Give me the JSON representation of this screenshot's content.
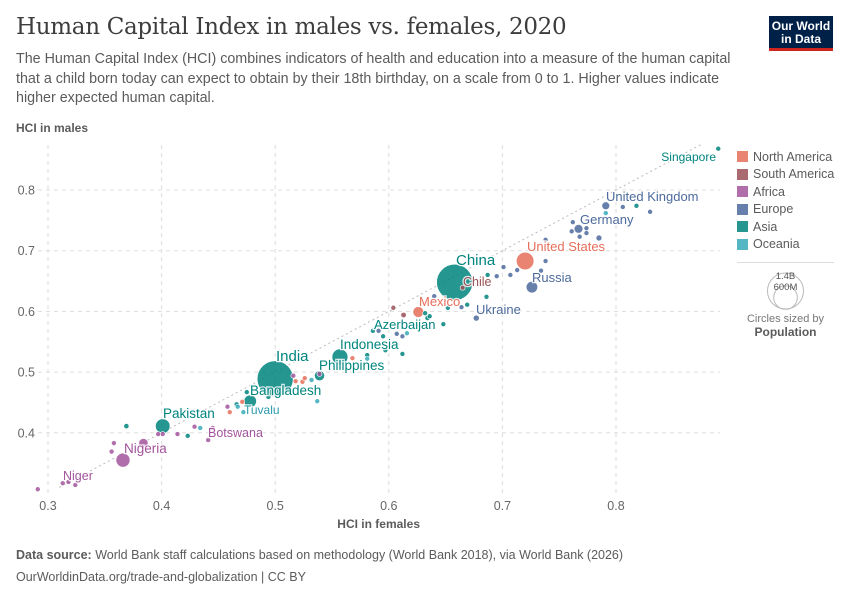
{
  "header": {
    "title": "Human Capital Index in males vs. females, 2020",
    "subtitle": "The Human Capital Index (HCI) combines indicators of health and education into a measure of the human capital that a child born today can expect to obtain by their 18th birthday, on a scale from 0 to 1. Higher values indicate higher expected human capital.",
    "logo_line1": "Our World",
    "logo_line2": "in Data"
  },
  "footer": {
    "source_label": "Data source:",
    "source_text": "World Bank staff calculations based on methodology (World Bank 2018), via World Bank (2026)",
    "url_text": "OurWorldinData.org/trade-and-globalization | CC BY"
  },
  "legend": {
    "items": [
      {
        "label": "North America",
        "color": "#E56E5A"
      },
      {
        "label": "South America",
        "color": "#9A5157"
      },
      {
        "label": "Africa",
        "color": "#A2559C"
      },
      {
        "label": "Europe",
        "color": "#4C6A9C"
      },
      {
        "label": "Asia",
        "color": "#00847E"
      },
      {
        "label": "Oceania",
        "color": "#38AABA"
      }
    ],
    "size_large": "1.4B",
    "size_small": "600M",
    "size_caption": "Circles sized by",
    "size_variable": "Population"
  },
  "chart_data": {
    "type": "scatter",
    "title": "Human Capital Index in males vs. females, 2020",
    "xlabel": "HCI in females",
    "ylabel": "HCI in males",
    "xlim": [
      0.29,
      0.9
    ],
    "ylim": [
      0.305,
      0.88
    ],
    "xticks": [
      "0.3",
      "0.4",
      "0.5",
      "0.6",
      "0.7",
      "0.8"
    ],
    "yticks": [
      "0.4",
      "0.5",
      "0.6",
      "0.7",
      "0.8"
    ],
    "grid": true,
    "reference_line": "y = x",
    "size_variable": "Population",
    "legend_position": "right",
    "points": [
      {
        "x": 0.291,
        "y": 0.307,
        "pop": 26,
        "region": "Africa",
        "label": "Niger"
      },
      {
        "x": 0.313,
        "y": 0.317,
        "pop": 17,
        "region": "Africa"
      },
      {
        "x": 0.318,
        "y": 0.319,
        "pop": 5,
        "region": "Africa"
      },
      {
        "x": 0.324,
        "y": 0.314,
        "pop": 8,
        "region": "Africa"
      },
      {
        "x": 0.356,
        "y": 0.369,
        "pop": 15,
        "region": "Africa"
      },
      {
        "x": 0.358,
        "y": 0.383,
        "pop": 5,
        "region": "Africa"
      },
      {
        "x": 0.366,
        "y": 0.355,
        "pop": 213,
        "region": "Africa",
        "label": "Nigeria"
      },
      {
        "x": 0.369,
        "y": 0.411,
        "pop": 30,
        "region": "Asia"
      },
      {
        "x": 0.384,
        "y": 0.383,
        "pop": 95,
        "region": "Africa"
      },
      {
        "x": 0.397,
        "y": 0.398,
        "pop": 10,
        "region": "Africa"
      },
      {
        "x": 0.401,
        "y": 0.398,
        "pop": 8,
        "region": "Africa"
      },
      {
        "x": 0.401,
        "y": 0.411,
        "pop": 230,
        "region": "Asia",
        "label": "Pakistan"
      },
      {
        "x": 0.414,
        "y": 0.398,
        "pop": 5,
        "region": "Africa"
      },
      {
        "x": 0.423,
        "y": 0.395,
        "pop": 12,
        "region": "Asia"
      },
      {
        "x": 0.429,
        "y": 0.41,
        "pop": 5,
        "region": "Africa"
      },
      {
        "x": 0.434,
        "y": 0.408,
        "pop": 1,
        "region": "Oceania"
      },
      {
        "x": 0.441,
        "y": 0.388,
        "pop": 3,
        "region": "Africa"
      },
      {
        "x": 0.445,
        "y": 0.408,
        "pop": 2.6,
        "region": "Africa",
        "label": "Botswana"
      },
      {
        "x": 0.458,
        "y": 0.443,
        "pop": 6,
        "region": "Africa"
      },
      {
        "x": 0.46,
        "y": 0.434,
        "pop": 11,
        "region": "North America"
      },
      {
        "x": 0.466,
        "y": 0.447,
        "pop": 4,
        "region": "Asia"
      },
      {
        "x": 0.467,
        "y": 0.443,
        "pop": 0.3,
        "region": "Oceania"
      },
      {
        "x": 0.471,
        "y": 0.451,
        "pop": 1,
        "region": "North America"
      },
      {
        "x": 0.472,
        "y": 0.434,
        "pop": 0.01,
        "region": "Oceania",
        "label": "Tuvalu"
      },
      {
        "x": 0.475,
        "y": 0.467,
        "pop": 8,
        "region": "Asia"
      },
      {
        "x": 0.478,
        "y": 0.452,
        "pop": 170,
        "region": "Asia",
        "label": "Bangladesh"
      },
      {
        "x": 0.494,
        "y": 0.459,
        "pop": 7,
        "region": "Asia"
      },
      {
        "x": 0.5,
        "y": 0.489,
        "pop": 1400,
        "region": "Asia",
        "label": "India"
      },
      {
        "x": 0.516,
        "y": 0.494,
        "pop": 15,
        "region": "Africa"
      },
      {
        "x": 0.518,
        "y": 0.485,
        "pop": 10,
        "region": "North America"
      },
      {
        "x": 0.524,
        "y": 0.484,
        "pop": 6,
        "region": "North America"
      },
      {
        "x": 0.526,
        "y": 0.49,
        "pop": 3,
        "region": "North America"
      },
      {
        "x": 0.532,
        "y": 0.487,
        "pop": 1,
        "region": "Oceania"
      },
      {
        "x": 0.537,
        "y": 0.452,
        "pop": 0.5,
        "region": "Oceania"
      },
      {
        "x": 0.539,
        "y": 0.497,
        "pop": 4,
        "region": "Africa"
      },
      {
        "x": 0.539,
        "y": 0.494,
        "pop": 112,
        "region": "Asia",
        "label": "Philippines"
      },
      {
        "x": 0.557,
        "y": 0.525,
        "pop": 273,
        "region": "Asia",
        "label": "Indonesia"
      },
      {
        "x": 0.568,
        "y": 0.523,
        "pop": 4,
        "region": "North America"
      },
      {
        "x": 0.581,
        "y": 0.528,
        "pop": 3,
        "region": "Asia"
      },
      {
        "x": 0.581,
        "y": 0.522,
        "pop": 1,
        "region": "Oceania"
      },
      {
        "x": 0.586,
        "y": 0.568,
        "pop": 5,
        "region": "Asia"
      },
      {
        "x": 0.591,
        "y": 0.568,
        "pop": 3,
        "region": "Europe"
      },
      {
        "x": 0.595,
        "y": 0.559,
        "pop": 10,
        "region": "Asia"
      },
      {
        "x": 0.597,
        "y": 0.536,
        "pop": 2,
        "region": "Asia"
      },
      {
        "x": 0.604,
        "y": 0.606,
        "pop": 7,
        "region": "South America"
      },
      {
        "x": 0.607,
        "y": 0.563,
        "pop": 3,
        "region": "Europe"
      },
      {
        "x": 0.612,
        "y": 0.559,
        "pop": 4,
        "region": "Europe"
      },
      {
        "x": 0.612,
        "y": 0.53,
        "pop": 7,
        "region": "Asia"
      },
      {
        "x": 0.613,
        "y": 0.594,
        "pop": 33,
        "region": "South America"
      },
      {
        "x": 0.616,
        "y": 0.564,
        "pop": 1,
        "region": "Oceania"
      },
      {
        "x": 0.626,
        "y": 0.599,
        "pop": 128,
        "region": "North America",
        "label": "Mexico"
      },
      {
        "x": 0.632,
        "y": 0.597,
        "pop": 10,
        "region": "Asia"
      },
      {
        "x": 0.634,
        "y": 0.589,
        "pop": 10,
        "region": "Asia",
        "label": "Azerbaijan"
      },
      {
        "x": 0.636,
        "y": 0.592,
        "pop": 5,
        "region": "Asia"
      },
      {
        "x": 0.648,
        "y": 0.579,
        "pop": 4,
        "region": "Asia"
      },
      {
        "x": 0.64,
        "y": 0.625,
        "pop": 3,
        "region": "Europe"
      },
      {
        "x": 0.652,
        "y": 0.606,
        "pop": 20,
        "region": "Asia"
      },
      {
        "x": 0.664,
        "y": 0.607,
        "pop": 2,
        "region": "Europe"
      },
      {
        "x": 0.669,
        "y": 0.611,
        "pop": 2,
        "region": "Asia"
      },
      {
        "x": 0.658,
        "y": 0.648,
        "pop": 1410,
        "region": "Asia",
        "label": "China"
      },
      {
        "x": 0.665,
        "y": 0.639,
        "pop": 19,
        "region": "South America",
        "label": "Chile"
      },
      {
        "x": 0.677,
        "y": 0.589,
        "pop": 40,
        "region": "Europe",
        "label": "Ukraine"
      },
      {
        "x": 0.686,
        "y": 0.624,
        "pop": 3,
        "region": "Asia"
      },
      {
        "x": 0.687,
        "y": 0.66,
        "pop": 5,
        "region": "Asia"
      },
      {
        "x": 0.695,
        "y": 0.658,
        "pop": 6,
        "region": "Europe"
      },
      {
        "x": 0.701,
        "y": 0.673,
        "pop": 4,
        "region": "Europe"
      },
      {
        "x": 0.707,
        "y": 0.66,
        "pop": 2,
        "region": "Europe"
      },
      {
        "x": 0.713,
        "y": 0.668,
        "pop": 5,
        "region": "Europe"
      },
      {
        "x": 0.72,
        "y": 0.683,
        "pop": 335,
        "region": "North America",
        "label": "United States"
      },
      {
        "x": 0.726,
        "y": 0.64,
        "pop": 144,
        "region": "Europe",
        "label": "Russia"
      },
      {
        "x": 0.734,
        "y": 0.667,
        "pop": 3,
        "region": "Europe"
      },
      {
        "x": 0.738,
        "y": 0.683,
        "pop": 10,
        "region": "Europe"
      },
      {
        "x": 0.738,
        "y": 0.718,
        "pop": 10,
        "region": "Europe"
      },
      {
        "x": 0.761,
        "y": 0.732,
        "pop": 5,
        "region": "Europe"
      },
      {
        "x": 0.762,
        "y": 0.747,
        "pop": 5,
        "region": "Europe"
      },
      {
        "x": 0.767,
        "y": 0.736,
        "pop": 83,
        "region": "Europe",
        "label": "Germany"
      },
      {
        "x": 0.768,
        "y": 0.723,
        "pop": 5,
        "region": "Europe"
      },
      {
        "x": 0.774,
        "y": 0.737,
        "pop": 8,
        "region": "Europe"
      },
      {
        "x": 0.774,
        "y": 0.729,
        "pop": 5,
        "region": "Europe"
      },
      {
        "x": 0.785,
        "y": 0.721,
        "pop": 38,
        "region": "Europe"
      },
      {
        "x": 0.791,
        "y": 0.774,
        "pop": 67,
        "region": "Europe",
        "label": "United Kingdom"
      },
      {
        "x": 0.791,
        "y": 0.762,
        "pop": 5,
        "region": "Oceania"
      },
      {
        "x": 0.806,
        "y": 0.772,
        "pop": 3,
        "region": "Europe"
      },
      {
        "x": 0.818,
        "y": 0.774,
        "pop": 5,
        "region": "Asia"
      },
      {
        "x": 0.83,
        "y": 0.764,
        "pop": 2,
        "region": "Europe"
      },
      {
        "x": 0.89,
        "y": 0.868,
        "pop": 6,
        "region": "Asia",
        "label": "Singapore"
      }
    ]
  }
}
